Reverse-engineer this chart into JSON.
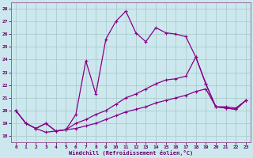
{
  "xlabel": "Windchill (Refroidissement éolien,°C)",
  "background_color": "#cce8ee",
  "grid_color": "#aacccc",
  "line_color": "#880088",
  "ylim": [
    17.5,
    28.5
  ],
  "xlim": [
    -0.5,
    23.5
  ],
  "yticks": [
    18,
    19,
    20,
    21,
    22,
    23,
    24,
    25,
    26,
    27,
    28
  ],
  "xticks": [
    0,
    1,
    2,
    3,
    4,
    5,
    6,
    7,
    8,
    9,
    10,
    11,
    12,
    13,
    14,
    15,
    16,
    17,
    18,
    19,
    20,
    21,
    22,
    23
  ],
  "series1_x": [
    0,
    1,
    2,
    3,
    4,
    5,
    6,
    7,
    8,
    9,
    10,
    11,
    12,
    13,
    14,
    15,
    16,
    17,
    18,
    19,
    20,
    21,
    22,
    23
  ],
  "series1_y": [
    20.0,
    19.0,
    18.6,
    19.0,
    18.4,
    18.5,
    19.7,
    23.9,
    21.3,
    25.6,
    27.0,
    27.8,
    26.1,
    25.4,
    26.5,
    26.1,
    26.0,
    25.8,
    24.2,
    22.1,
    20.3,
    20.2,
    20.1,
    20.8
  ],
  "series2_x": [
    0,
    1,
    2,
    3,
    4,
    5,
    6,
    7,
    8,
    9,
    10,
    11,
    12,
    13,
    14,
    15,
    16,
    17,
    18,
    19,
    20,
    21,
    22,
    23
  ],
  "series2_y": [
    20.0,
    19.0,
    18.6,
    19.0,
    18.4,
    18.5,
    19.0,
    19.3,
    19.7,
    20.0,
    20.5,
    21.0,
    21.3,
    21.7,
    22.1,
    22.4,
    22.5,
    22.7,
    24.2,
    22.1,
    20.3,
    20.3,
    20.2,
    20.8
  ],
  "series3_x": [
    0,
    1,
    2,
    3,
    4,
    5,
    6,
    7,
    8,
    9,
    10,
    11,
    12,
    13,
    14,
    15,
    16,
    17,
    18,
    19,
    20,
    21,
    22,
    23
  ],
  "series3_y": [
    20.0,
    19.0,
    18.6,
    18.3,
    18.4,
    18.5,
    18.6,
    18.8,
    19.0,
    19.3,
    19.6,
    19.9,
    20.1,
    20.3,
    20.6,
    20.8,
    21.0,
    21.2,
    21.5,
    21.7,
    20.3,
    20.2,
    20.1,
    20.8
  ]
}
